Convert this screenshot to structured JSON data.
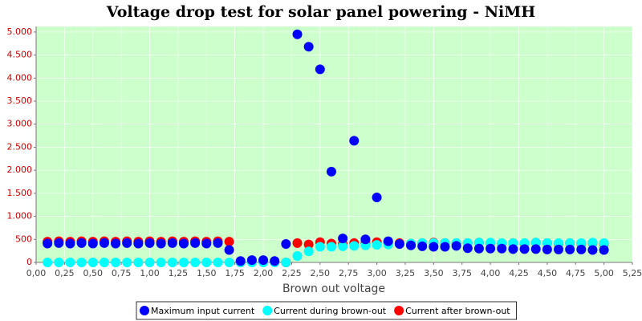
{
  "chart_data": {
    "type": "scatter",
    "title": "Voltage drop test for solar panel powering -  NiMH",
    "x_label": "Brown out voltage",
    "xlim": [
      0,
      5.25
    ],
    "ylim": [
      0,
      5120
    ],
    "xticks": [
      {
        "value": 0,
        "label": "0,00"
      },
      {
        "value": 0.25,
        "label": "0,25"
      },
      {
        "value": 0.5,
        "label": "0,50"
      },
      {
        "value": 0.75,
        "label": "0,75"
      },
      {
        "value": 1,
        "label": "1,00"
      },
      {
        "value": 1.25,
        "label": "1,25"
      },
      {
        "value": 1.5,
        "label": "1,50"
      },
      {
        "value": 1.75,
        "label": "1,75"
      },
      {
        "value": 2,
        "label": "2,00"
      },
      {
        "value": 2.25,
        "label": "2,25"
      },
      {
        "value": 2.5,
        "label": "2,50"
      },
      {
        "value": 2.75,
        "label": "2,75"
      },
      {
        "value": 3,
        "label": "3,00"
      },
      {
        "value": 3.25,
        "label": "3,25"
      },
      {
        "value": 3.5,
        "label": "3,50"
      },
      {
        "value": 3.75,
        "label": "3,75"
      },
      {
        "value": 4,
        "label": "4,00"
      },
      {
        "value": 4.25,
        "label": "4,25"
      },
      {
        "value": 4.5,
        "label": "4,50"
      },
      {
        "value": 4.75,
        "label": "4,75"
      },
      {
        "value": 5,
        "label": "5,00"
      },
      {
        "value": 5.25,
        "label": "5,25"
      }
    ],
    "yticks": [
      0,
      {
        "value": 500,
        "label": "500"
      },
      {
        "value": 1000,
        "label": "1.000"
      },
      {
        "value": 1500,
        "label": "1.500"
      },
      {
        "value": 2000,
        "label": "2.000"
      },
      {
        "value": 2500,
        "label": "2.500"
      },
      {
        "value": 3000,
        "label": "3.000"
      },
      {
        "value": 3500,
        "label": "3.500"
      },
      {
        "value": 4000,
        "label": "4.000"
      },
      {
        "value": 4500,
        "label": "4.500"
      },
      {
        "value": 5000,
        "label": "5.000"
      }
    ],
    "grid": true,
    "legend": "bottom",
    "x": [
      0.1,
      0.2,
      0.3,
      0.4,
      0.5,
      0.6,
      0.7,
      0.8,
      0.9,
      1.0,
      1.1,
      1.2,
      1.3,
      1.4,
      1.5,
      1.6,
      1.7,
      1.8,
      1.9,
      2.0,
      2.1,
      2.2,
      2.3,
      2.4,
      2.5,
      2.6,
      2.7,
      2.8,
      2.9,
      3.0,
      3.1,
      3.2,
      3.3,
      3.4,
      3.5,
      3.6,
      3.7,
      3.8,
      3.9,
      4.0,
      4.1,
      4.2,
      4.3,
      4.4,
      4.5,
      4.6,
      4.7,
      4.8,
      4.9,
      5.0
    ],
    "series": [
      {
        "name": "Maximum input current",
        "color": "#0000ff",
        "values": [
          410,
          420,
          410,
          420,
          410,
          420,
          410,
          420,
          410,
          420,
          410,
          420,
          410,
          420,
          410,
          420,
          270,
          30,
          50,
          50,
          30,
          400,
          4950,
          4680,
          4190,
          1970,
          520,
          2640,
          500,
          1410,
          460,
          400,
          370,
          350,
          340,
          340,
          360,
          310,
          300,
          300,
          300,
          290,
          290,
          290,
          280,
          280,
          280,
          280,
          270,
          270
        ]
      },
      {
        "name": "Current during brown-out",
        "color": "#00ffff",
        "values": [
          0,
          0,
          0,
          0,
          0,
          0,
          0,
          0,
          0,
          0,
          0,
          0,
          0,
          0,
          0,
          0,
          0,
          0,
          0,
          0,
          0,
          0,
          140,
          240,
          340,
          340,
          350,
          360,
          370,
          380,
          390,
          400,
          410,
          420,
          420,
          420,
          420,
          420,
          430,
          430,
          420,
          420,
          420,
          430,
          420,
          420,
          420,
          420,
          430,
          420
        ]
      },
      {
        "name": "Current after brown-out",
        "color": "#ff0000",
        "values": [
          450,
          460,
          450,
          460,
          450,
          460,
          450,
          460,
          450,
          460,
          450,
          460,
          450,
          460,
          450,
          460,
          450,
          0,
          20,
          20,
          10,
          0,
          420,
          390,
          440,
          410,
          400,
          420,
          430,
          440,
          430,
          420,
          410,
          420,
          430,
          420,
          410,
          420,
          430,
          420,
          410,
          420,
          410,
          430,
          420,
          410,
          420,
          410,
          420,
          400
        ]
      }
    ]
  }
}
